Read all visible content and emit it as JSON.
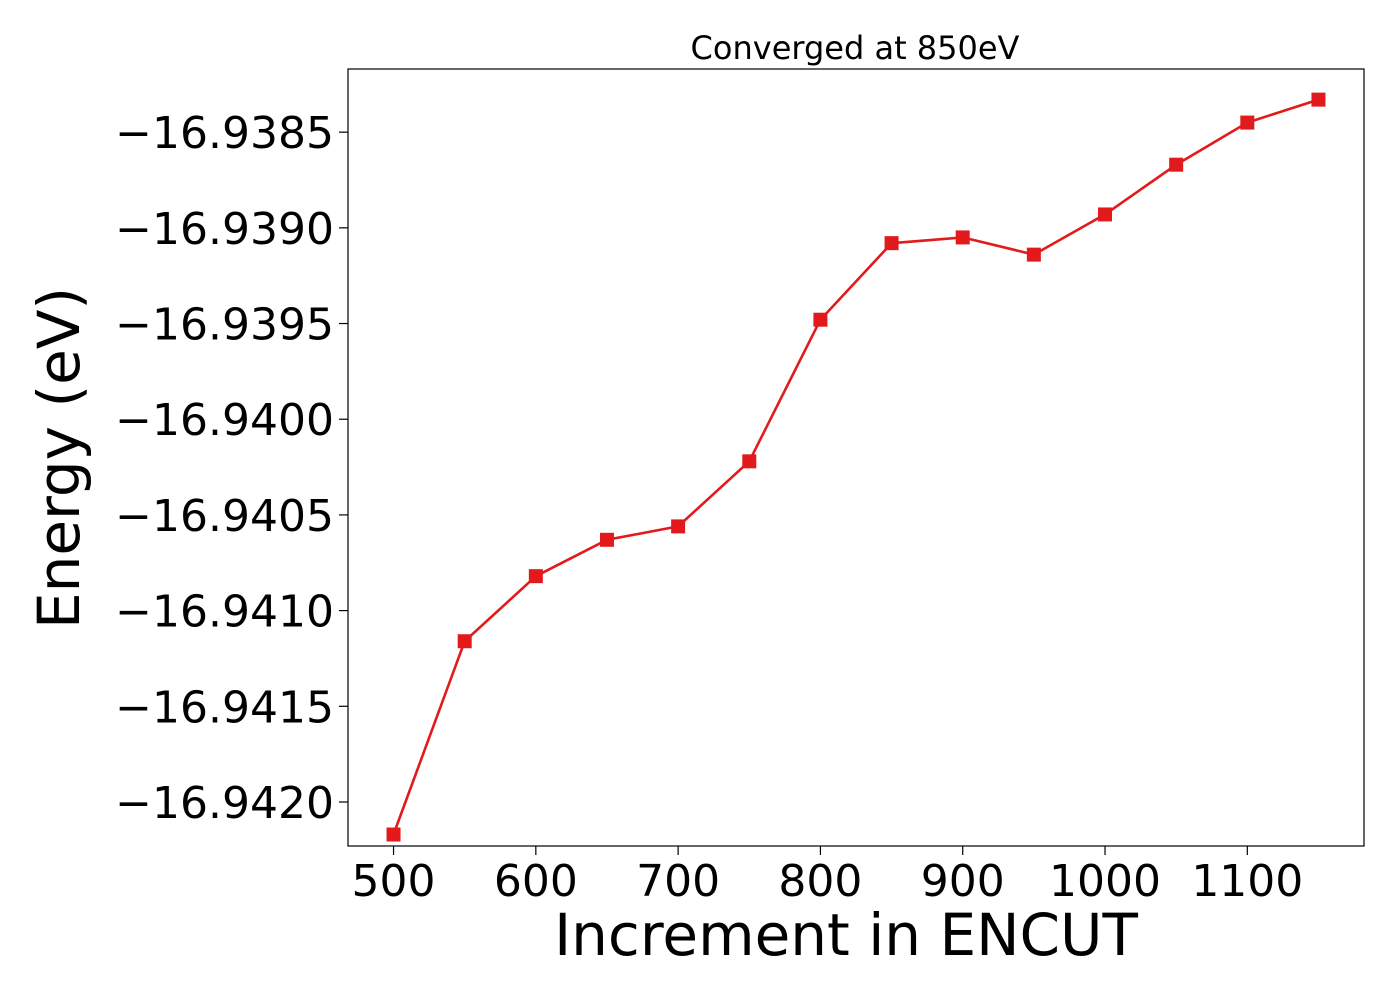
{
  "chart_data": {
    "type": "line",
    "title": "Converged at 850eV",
    "xlabel": "Increment in ENCUT",
    "ylabel": "Energy (eV)",
    "xlim": [
      468,
      1182
    ],
    "ylim": [
      -16.94223,
      -16.93817
    ],
    "xticks": [
      500,
      600,
      700,
      800,
      900,
      1000,
      1100
    ],
    "xtick_labels": [
      "500",
      "600",
      "700",
      "800",
      "900",
      "1000",
      "1100"
    ],
    "yticks": [
      -16.9385,
      -16.939,
      -16.9395,
      -16.94,
      -16.9405,
      -16.941,
      -16.9415,
      -16.942
    ],
    "ytick_labels": [
      "−16.9385",
      "−16.9390",
      "−16.9395",
      "−16.9400",
      "−16.9405",
      "−16.9410",
      "−16.9415",
      "−16.9420"
    ],
    "grid": false,
    "series": [
      {
        "color": "#e31a1c",
        "marker": "square",
        "x": [
          500,
          550,
          600,
          650,
          700,
          750,
          800,
          850,
          900,
          950,
          1000,
          1050,
          1100,
          1150
        ],
        "y": [
          -16.94217,
          -16.94116,
          -16.94082,
          -16.94063,
          -16.94056,
          -16.94022,
          -16.93948,
          -16.93908,
          -16.93905,
          -16.93914,
          -16.93893,
          -16.93867,
          -16.93845,
          -16.93833
        ]
      }
    ]
  }
}
